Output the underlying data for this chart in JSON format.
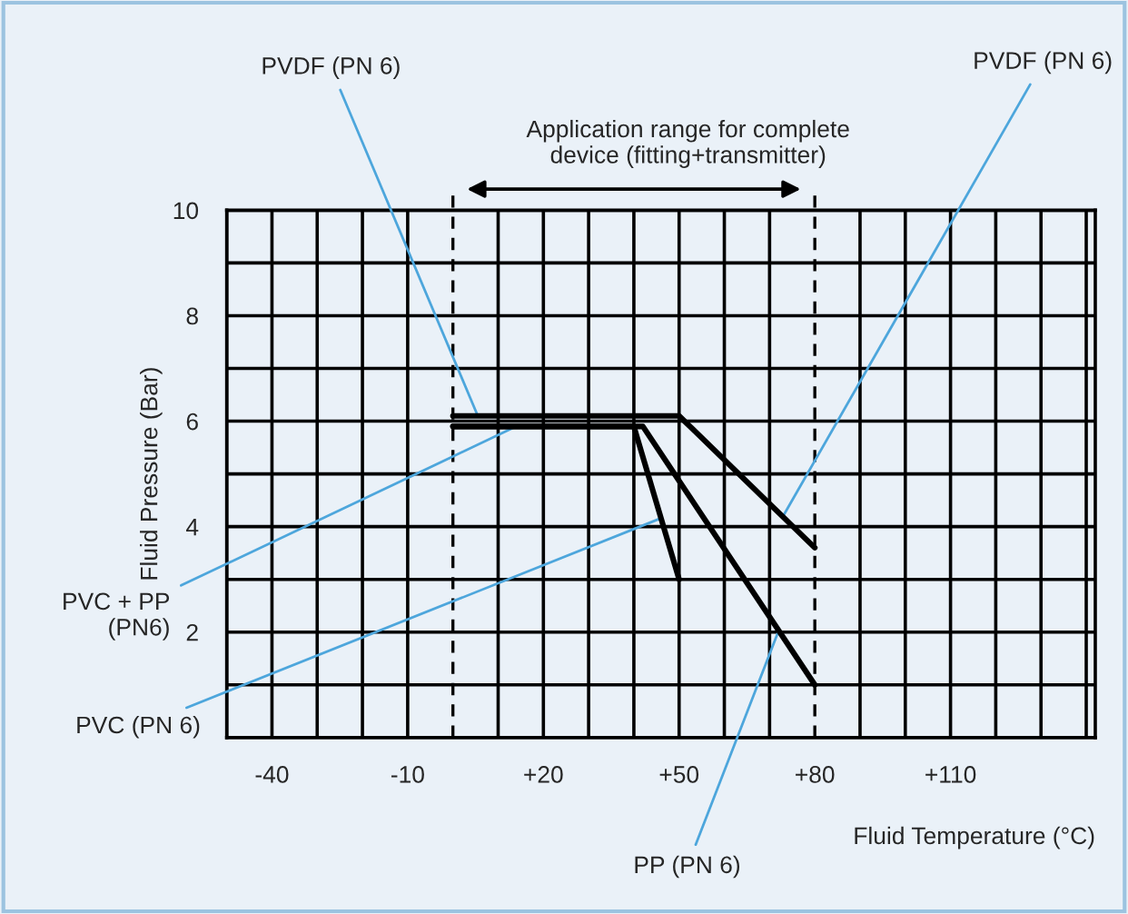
{
  "chart_data": {
    "type": "line",
    "xlabel": "Fluid Temperature (°C)",
    "ylabel": "Fluid Pressure (Bar)",
    "series": [
      {
        "name": "PVDF (PN 6)",
        "color": "#000000",
        "x": [
          0,
          50,
          80
        ],
        "values": [
          6.1,
          6.1,
          3.6
        ]
      },
      {
        "name": "PVC (PN 6)",
        "color": "#000000",
        "x": [
          0,
          40,
          50
        ],
        "values": [
          5.9,
          5.9,
          3.0
        ]
      },
      {
        "name": "PP (PN 6)",
        "color": "#000000",
        "x": [
          0,
          42,
          80
        ],
        "values": [
          5.9,
          5.9,
          1.0
        ]
      }
    ],
    "xlim": [
      -50,
      142
    ],
    "ylim": [
      0,
      10
    ],
    "xticks": [
      {
        "value": -50,
        "label": null
      },
      -40,
      {
        "value": -30,
        "label": null
      },
      {
        "value": -20,
        "label": null
      },
      -10,
      {
        "value": 10,
        "label": null
      },
      {
        "value": 20,
        "label": "+20"
      },
      {
        "value": 30,
        "label": null
      },
      {
        "value": 40,
        "label": null
      },
      {
        "value": 50,
        "label": "+50"
      },
      {
        "value": 60,
        "label": null
      },
      {
        "value": 70,
        "label": null
      },
      {
        "value": 80,
        "label": "+80"
      },
      {
        "value": 90,
        "label": null
      },
      {
        "value": 100,
        "label": null
      },
      {
        "value": 110,
        "label": "+110"
      },
      {
        "value": 120,
        "label": null
      },
      {
        "value": 130,
        "label": null
      },
      {
        "value": 140,
        "label": null
      }
    ],
    "yticks": [
      {
        "value": 0,
        "label": null
      },
      {
        "value": 1,
        "label": null
      },
      2,
      {
        "value": 3,
        "label": null
      },
      4,
      {
        "value": 5,
        "label": null
      },
      6,
      {
        "value": 7,
        "label": null
      },
      8,
      {
        "value": 9,
        "label": null
      },
      10
    ],
    "grid": true,
    "legend": false,
    "line_style": "solid",
    "marker": "none",
    "ref_lines": [
      {
        "axis": "x",
        "value": 0,
        "label": null,
        "color": "#000000",
        "line_style": "dashed"
      },
      {
        "axis": "x",
        "value": 80,
        "label": null,
        "color": "#000000",
        "line_style": "dashed"
      }
    ],
    "annotations": [
      "Application range for complete\ndevice (fitting+transmitter)",
      {
        "text": "PVDF (PN 6)",
        "x": 73,
        "y": 4.2
      },
      {
        "text": "PVC + PP\n(PN6)",
        "x": 14,
        "y": 5.9
      }
    ]
  }
}
